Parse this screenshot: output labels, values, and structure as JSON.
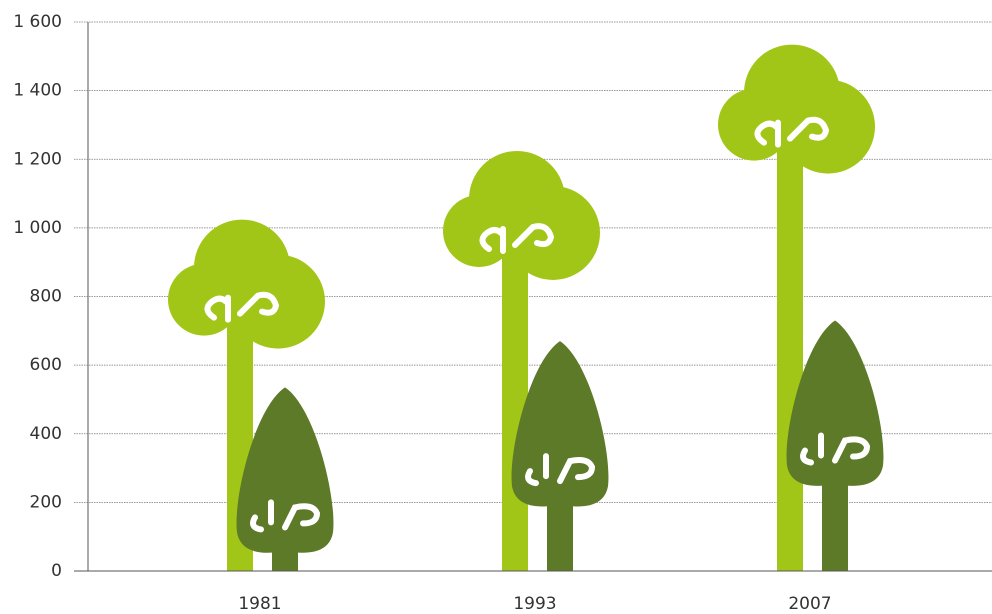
{
  "chart_data": {
    "type": "pictogram",
    "categories": [
      "1981",
      "1993",
      "2007"
    ],
    "series": [
      {
        "color": "#a2c617",
        "values": [
          1030,
          1230,
          1540
        ]
      },
      {
        "color": "#5d7a28",
        "values": [
          535,
          670,
          730
        ]
      }
    ],
    "ylim": [
      0,
      1600
    ],
    "yticks": [
      0,
      200,
      400,
      600,
      800,
      {
        "value": 1000,
        "label": "1 000"
      },
      {
        "value": 1200,
        "label": "1 200"
      },
      {
        "value": 1400,
        "label": "1 400"
      },
      {
        "value": 1600,
        "label": "1 600"
      }
    ],
    "grid": true
  }
}
